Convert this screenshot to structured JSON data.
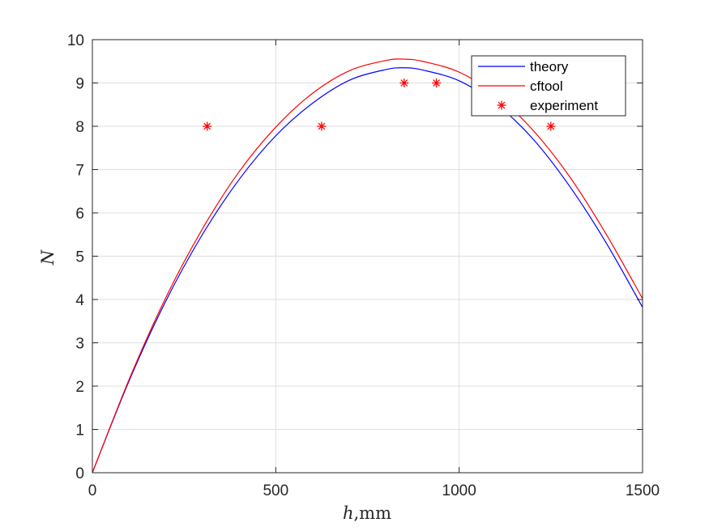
{
  "chart_data": {
    "type": "line",
    "xlabel_var": "h",
    "xlabel_unit": ",mm",
    "ylabel": "N",
    "xlim": [
      0,
      1500
    ],
    "ylim": [
      0,
      10
    ],
    "xticks": [
      0,
      500,
      1000,
      1500
    ],
    "yticks": [
      0,
      1,
      2,
      3,
      4,
      5,
      6,
      7,
      8,
      9,
      10
    ],
    "grid": true,
    "legend_position": "top-right",
    "series": [
      {
        "name": "theory",
        "style": "line",
        "color": "#0000ff",
        "x": [
          0,
          100,
          200,
          300,
          400,
          500,
          600,
          700,
          800,
          850,
          900,
          1000,
          1100,
          1200,
          1300,
          1400,
          1500
        ],
        "y": [
          0,
          2.12,
          3.96,
          5.5,
          6.77,
          7.78,
          8.53,
          9.06,
          9.31,
          9.35,
          9.3,
          9.05,
          8.52,
          7.72,
          6.63,
          5.32,
          3.82
        ]
      },
      {
        "name": "cftool",
        "style": "line",
        "color": "#ff0000",
        "x": [
          0,
          100,
          200,
          300,
          400,
          500,
          600,
          700,
          800,
          850,
          900,
          1000,
          1100,
          1200,
          1300,
          1400,
          1500
        ],
        "y": [
          0,
          2.15,
          4.04,
          5.63,
          6.95,
          7.98,
          8.76,
          9.28,
          9.52,
          9.55,
          9.5,
          9.25,
          8.72,
          7.92,
          6.85,
          5.52,
          4.02
        ]
      },
      {
        "name": "experiment",
        "style": "marker",
        "color": "#ff0000",
        "x": [
          313,
          625,
          850,
          938,
          1250
        ],
        "y": [
          8,
          8,
          9,
          9,
          8
        ]
      }
    ]
  }
}
